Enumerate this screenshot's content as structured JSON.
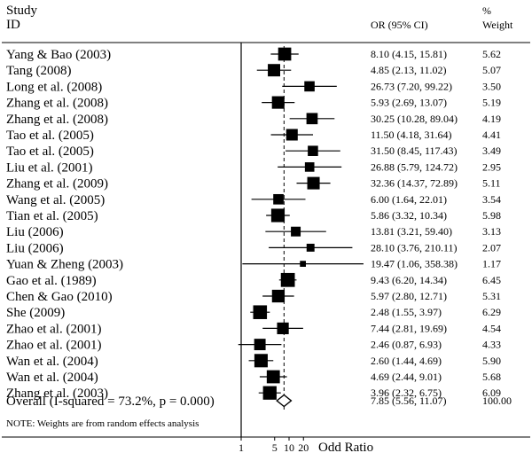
{
  "header": {
    "study_label": "Study",
    "id_label": "ID",
    "or_label": "OR (95% CI)",
    "pct_label": "%",
    "weight_label": "Weight"
  },
  "note": "NOTE: Weights are from random effects analysis",
  "colors": {
    "ink": "#000000",
    "background": "#ffffff"
  },
  "chart_data": {
    "type": "forest",
    "scale": "log",
    "xlim": [
      1,
      20
    ],
    "xticks": [
      "1",
      "5",
      "10",
      "20"
    ],
    "xlabel": "Odd Ratio",
    "reference_line": 1,
    "pooled_line": 7.85,
    "studies": [
      {
        "name": "Yang & Bao (2003)",
        "or": 8.1,
        "lo": 4.15,
        "hi": 15.81,
        "or_text": "8.10 (4.15, 15.81)",
        "weight": "5.62",
        "w": 5.62
      },
      {
        "name": "Tang (2008)",
        "or": 4.85,
        "lo": 2.13,
        "hi": 11.02,
        "or_text": "4.85 (2.13, 11.02)",
        "weight": "5.07",
        "w": 5.07
      },
      {
        "name": "Long et al. (2008)",
        "or": 26.73,
        "lo": 7.2,
        "hi": 99.22,
        "or_text": "26.73 (7.20, 99.22)",
        "weight": "3.50",
        "w": 3.5
      },
      {
        "name": "Zhang et al. (2008)",
        "or": 5.93,
        "lo": 2.69,
        "hi": 13.07,
        "or_text": "5.93 (2.69, 13.07)",
        "weight": "5.19",
        "w": 5.19
      },
      {
        "name": "Zhang et al. (2008)",
        "or": 30.25,
        "lo": 10.28,
        "hi": 89.04,
        "or_text": "30.25 (10.28, 89.04)",
        "weight": "4.19",
        "w": 4.19
      },
      {
        "name": "Tao et al. (2005)",
        "or": 11.5,
        "lo": 4.18,
        "hi": 31.64,
        "or_text": "11.50 (4.18, 31.64)",
        "weight": "4.41",
        "w": 4.41
      },
      {
        "name": "Tao et al. (2005)",
        "or": 31.5,
        "lo": 8.45,
        "hi": 117.43,
        "or_text": "31.50 (8.45, 117.43)",
        "weight": "3.49",
        "w": 3.49
      },
      {
        "name": "Liu et al. (2001)",
        "or": 26.88,
        "lo": 5.79,
        "hi": 124.72,
        "or_text": "26.88 (5.79, 124.72)",
        "weight": "2.95",
        "w": 2.95
      },
      {
        "name": "Zhang et al. (2009)",
        "or": 32.36,
        "lo": 14.37,
        "hi": 72.89,
        "or_text": "32.36 (14.37, 72.89)",
        "weight": "5.11",
        "w": 5.11
      },
      {
        "name": "Wang et al. (2005)",
        "or": 6.0,
        "lo": 1.64,
        "hi": 22.01,
        "or_text": "6.00 (1.64, 22.01)",
        "weight": "3.54",
        "w": 3.54
      },
      {
        "name": "Tian et al. (2005)",
        "or": 5.86,
        "lo": 3.32,
        "hi": 10.34,
        "or_text": "5.86 (3.32, 10.34)",
        "weight": "5.98",
        "w": 5.98
      },
      {
        "name": "Liu (2006)",
        "or": 13.81,
        "lo": 3.21,
        "hi": 59.4,
        "or_text": "13.81 (3.21, 59.40)",
        "weight": "3.13",
        "w": 3.13
      },
      {
        "name": "Liu (2006)",
        "or": 28.1,
        "lo": 3.76,
        "hi": 210.11,
        "or_text": "28.10 (3.76, 210.11)",
        "weight": "2.07",
        "w": 2.07
      },
      {
        "name": "Yuan & Zheng (2003)",
        "or": 19.47,
        "lo": 1.06,
        "hi": 358.38,
        "or_text": "19.47 (1.06, 358.38)",
        "weight": "1.17",
        "w": 1.17
      },
      {
        "name": "Gao et al. (1989)",
        "or": 9.43,
        "lo": 6.2,
        "hi": 14.34,
        "or_text": "9.43 (6.20, 14.34)",
        "weight": "6.45",
        "w": 6.45
      },
      {
        "name": "Chen & Gao (2010)",
        "or": 5.97,
        "lo": 2.8,
        "hi": 12.71,
        "or_text": "5.97 (2.80, 12.71)",
        "weight": "5.31",
        "w": 5.31
      },
      {
        "name": "She (2009)",
        "or": 2.48,
        "lo": 1.55,
        "hi": 3.97,
        "or_text": "2.48 (1.55, 3.97)",
        "weight": "6.29",
        "w": 6.29
      },
      {
        "name": "Zhao et al. (2001)",
        "or": 7.44,
        "lo": 2.81,
        "hi": 19.69,
        "or_text": "7.44 (2.81, 19.69)",
        "weight": "4.54",
        "w": 4.54
      },
      {
        "name": "Zhao et al. (2001)",
        "or": 2.46,
        "lo": 0.87,
        "hi": 6.93,
        "or_text": "2.46 (0.87, 6.93)",
        "weight": "4.33",
        "w": 4.33
      },
      {
        "name": "Wan et al. (2004)",
        "or": 2.6,
        "lo": 1.44,
        "hi": 4.69,
        "or_text": "2.60 (1.44, 4.69)",
        "weight": "5.90",
        "w": 5.9
      },
      {
        "name": "Wan et al. (2004)",
        "or": 4.69,
        "lo": 2.44,
        "hi": 9.01,
        "or_text": "4.69 (2.44, 9.01)",
        "weight": "5.68",
        "w": 5.68
      },
      {
        "name": "Zhang et al. (2003)",
        "or": 3.96,
        "lo": 2.32,
        "hi": 6.75,
        "or_text": "3.96 (2.32, 6.75)",
        "weight": "6.09",
        "w": 6.09
      }
    ],
    "overall": {
      "name": "Overall  (I-squared = 73.2%, p = 0.000)",
      "or": 7.85,
      "lo": 5.56,
      "hi": 11.07,
      "or_text": "7.85 (5.56, 11.07)",
      "weight": "100.00"
    }
  }
}
